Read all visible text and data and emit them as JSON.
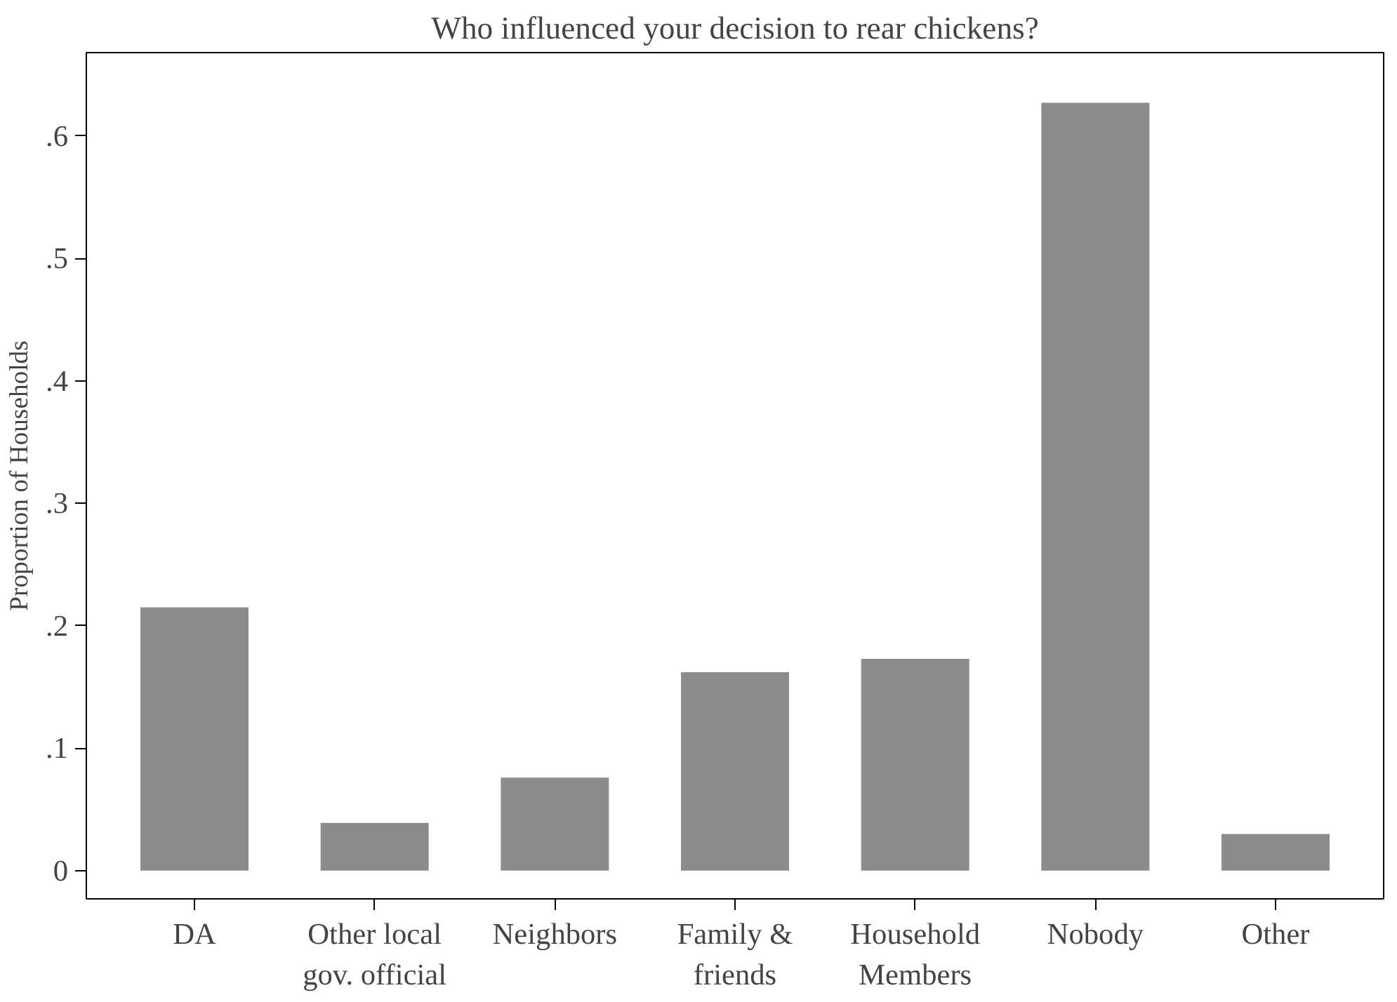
{
  "chart_data": {
    "type": "bar",
    "title": "Who influenced your decision to rear chickens?",
    "ylabel": "Proportion of Households",
    "categories": [
      "DA",
      "Other local gov. official",
      "Neighbors",
      "Family & friends",
      "Household Members",
      "Nobody",
      "Other"
    ],
    "values": [
      0.215,
      0.039,
      0.076,
      0.162,
      0.173,
      0.627,
      0.03
    ],
    "color": "#8c8c8c",
    "ylim": [
      -0.023,
      0.668
    ],
    "yticks": [
      0,
      {
        "value": 0.1,
        "label": ".1"
      },
      {
        "value": 0.2,
        "label": ".2"
      },
      {
        "value": 0.3,
        "label": ".3"
      },
      {
        "value": 0.4,
        "label": ".4"
      },
      {
        "value": 0.5,
        "label": ".5"
      },
      {
        "value": 0.6,
        "label": ".6"
      }
    ],
    "grid": false
  }
}
